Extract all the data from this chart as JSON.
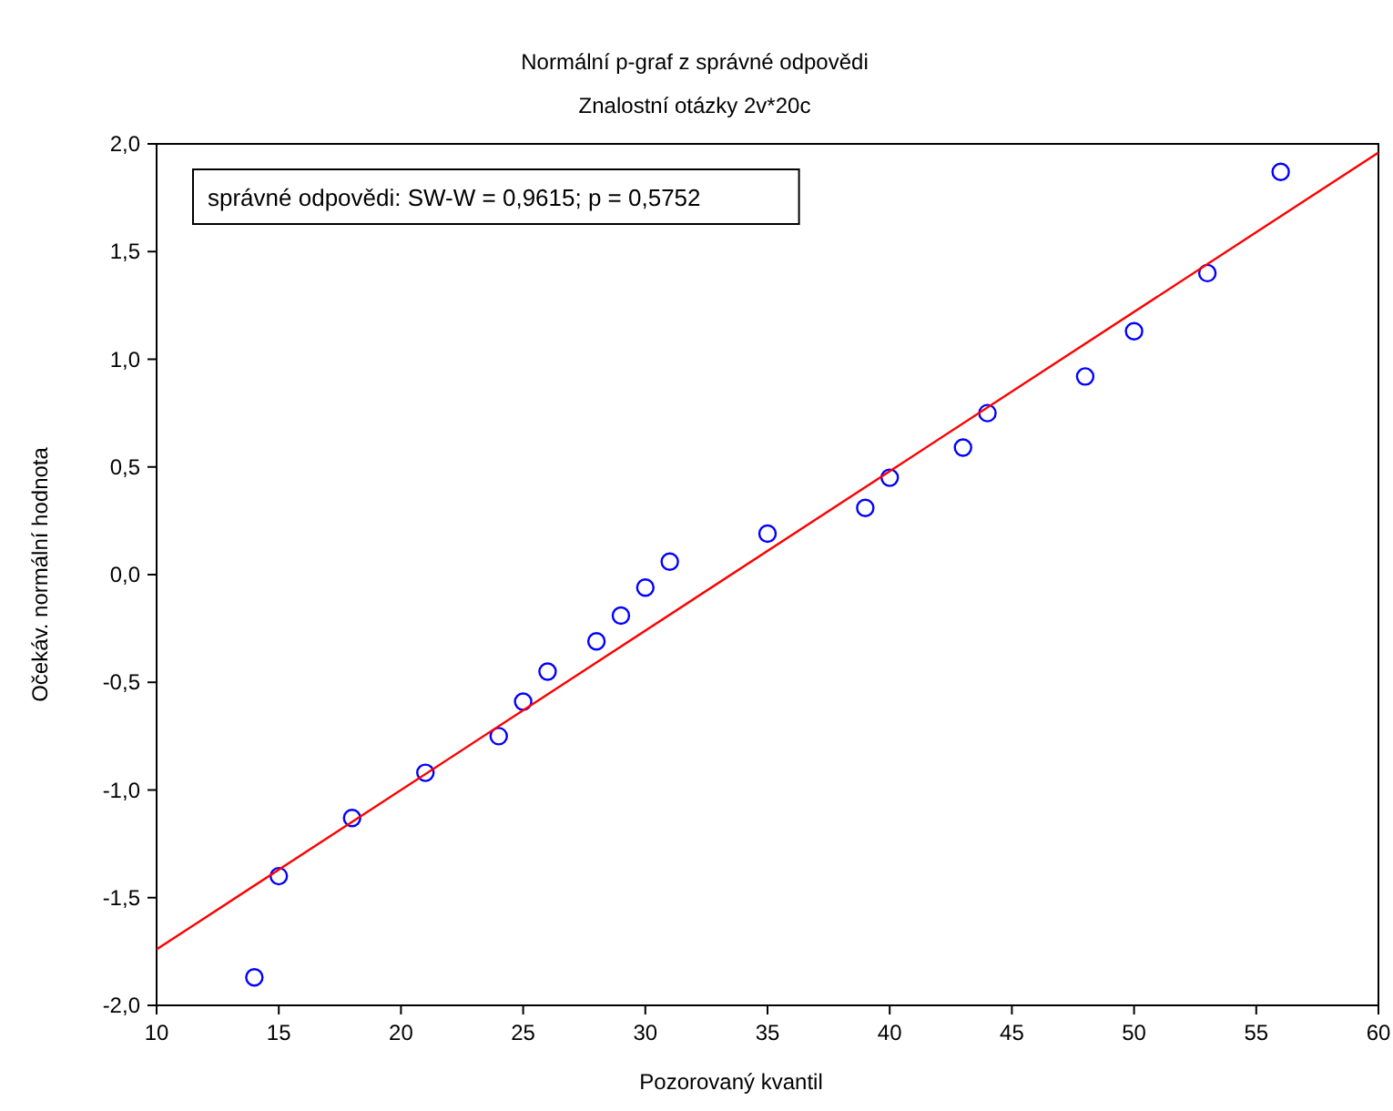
{
  "chart_data": {
    "type": "scatter",
    "title": "Normální p-graf z správné odpovědi",
    "subtitle": "Znalostní otázky 2v*20c",
    "xlabel": "Pozorovaný kvantil",
    "ylabel": "Očekáv. normální hodnota",
    "annotations": [
      "správné odpovědi:  SW-W = 0,9615; p = 0,5752"
    ],
    "series": [
      {
        "color": "#0000ff",
        "marker": "circle",
        "x": [
          14,
          15,
          18,
          21,
          24,
          25,
          26,
          28,
          29,
          30,
          31,
          35,
          39,
          40,
          43,
          44,
          48,
          50,
          53,
          56
        ],
        "values": [
          -1.87,
          -1.4,
          -1.13,
          -0.92,
          -0.75,
          -0.59,
          -0.45,
          -0.31,
          -0.19,
          -0.06,
          0.06,
          0.19,
          0.31,
          0.45,
          0.59,
          0.75,
          0.92,
          1.13,
          1.4,
          1.87
        ]
      },
      {
        "type": "line",
        "color": "#ff0000",
        "x": [
          10,
          60
        ],
        "values": [
          -1.74,
          1.96
        ]
      }
    ],
    "xlim": [
      10,
      60
    ],
    "xticks": [
      10,
      15,
      20,
      25,
      30,
      35,
      40,
      45,
      50,
      55,
      60
    ],
    "ylim": [
      -2,
      2
    ],
    "yticks": [
      {
        "value": -2,
        "label": "-2,0"
      },
      {
        "value": -1.5,
        "label": "-1,5"
      },
      {
        "value": -1,
        "label": "-1,0"
      },
      {
        "value": -0.5,
        "label": "-0,5"
      },
      {
        "value": 0,
        "label": "0,0"
      },
      {
        "value": 0.5,
        "label": "0,5"
      },
      {
        "value": 1,
        "label": "1,0"
      },
      {
        "value": 1.5,
        "label": "1,5"
      },
      {
        "value": 2,
        "label": "2,0"
      }
    ],
    "grid": false
  }
}
